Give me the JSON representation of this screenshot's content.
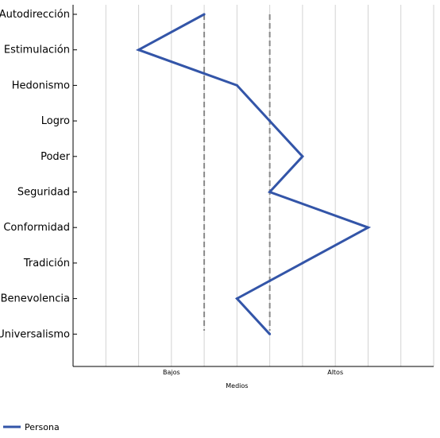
{
  "chart_data": {
    "type": "line",
    "orientation": "horizontal",
    "categories": [
      "Autodirección",
      "Estimulación",
      "Hedonismo",
      "Logro",
      "Poder",
      "Seguridad",
      "Conformidad",
      "Tradición",
      "Benevolencia",
      "Universalismo"
    ],
    "series": [
      {
        "name": "Persona",
        "color": "#3355a8",
        "values": [
          4,
          2,
          5,
          6,
          7,
          6,
          9,
          7,
          5,
          6
        ]
      }
    ],
    "xlim": [
      0,
      11
    ],
    "x_band_labels": [
      {
        "label": "Bajos",
        "at": 3
      },
      {
        "label": "Medios",
        "at": 5
      },
      {
        "label": "Altos",
        "at": 8
      }
    ],
    "reference_lines": [
      4,
      6
    ],
    "reference_line_style": "dashed",
    "grid": true,
    "legend_position": "bottom-left"
  }
}
